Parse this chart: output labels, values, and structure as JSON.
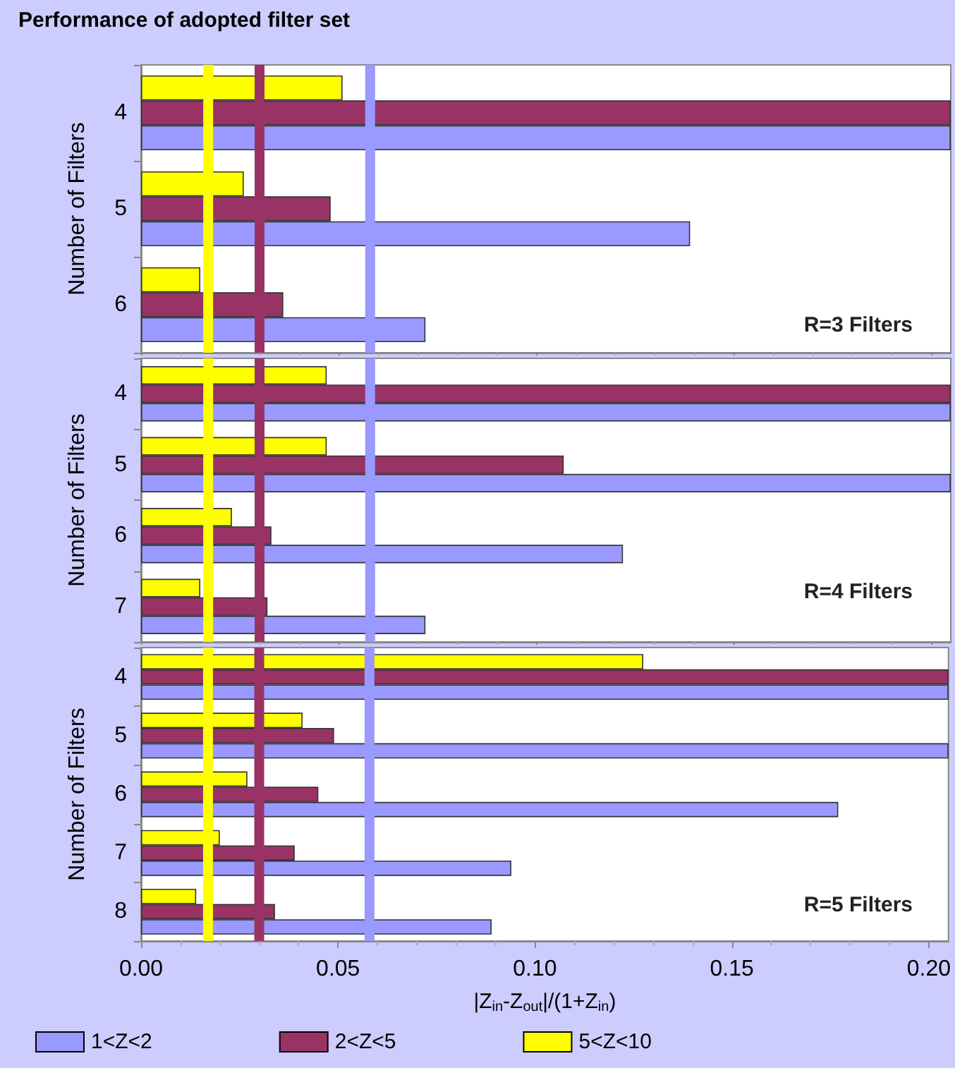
{
  "chart_data": [
    {
      "type": "bar",
      "orientation": "horizontal",
      "title": "Performance of adopted filter set",
      "ylabel": "Number of Filters",
      "annotations": [
        "R=3 Filters"
      ],
      "categories": [
        "4",
        "5",
        "6"
      ],
      "series": [
        {
          "color": "#9999ff",
          "values": [
            0.205,
            0.139,
            0.072
          ]
        },
        {
          "color": "#993366",
          "values": [
            0.205,
            0.048,
            0.036
          ]
        },
        {
          "color": "#ffff00",
          "values": [
            0.051,
            0.026,
            0.015
          ]
        }
      ],
      "xlim": [
        0,
        0.205
      ],
      "xticks": [
        0,
        0.05,
        0.1,
        0.15,
        0.2
      ],
      "tick_labels": "y",
      "grid": false,
      "legend": false,
      "ref_lines": [
        {
          "axis": "x",
          "value": 0.017,
          "color": "#ffff00"
        },
        {
          "axis": "x",
          "value": 0.03,
          "color": "#993366"
        },
        {
          "axis": "x",
          "value": 0.058,
          "color": "#9999ff"
        }
      ]
    },
    {
      "type": "bar",
      "orientation": "horizontal",
      "ylabel": "Number of Filters",
      "annotations": [
        "R=4 Filters"
      ],
      "categories": [
        "4",
        "5",
        "6",
        "7"
      ],
      "series": [
        {
          "color": "#9999ff",
          "values": [
            0.205,
            0.205,
            0.122,
            0.072
          ]
        },
        {
          "color": "#993366",
          "values": [
            0.205,
            0.107,
            0.033,
            0.032
          ]
        },
        {
          "color": "#ffff00",
          "values": [
            0.047,
            0.047,
            0.023,
            0.015
          ]
        }
      ],
      "xlim": [
        0,
        0.205
      ],
      "xticks": [
        0,
        0.05,
        0.1,
        0.15,
        0.2
      ],
      "tick_labels": "y",
      "grid": false,
      "legend": false,
      "ref_lines": [
        {
          "axis": "x",
          "value": 0.017,
          "color": "#ffff00"
        },
        {
          "axis": "x",
          "value": 0.03,
          "color": "#993366"
        },
        {
          "axis": "x",
          "value": 0.058,
          "color": "#9999ff"
        }
      ]
    },
    {
      "type": "bar",
      "orientation": "horizontal",
      "ylabel": "Number of Filters",
      "xlabel": "|Z$_{in}$-Z$_{out}$|/(1+Z$_{in}$)",
      "annotations": [
        "R=5 Filters"
      ],
      "categories": [
        "4",
        "5",
        "6",
        "7",
        "8"
      ],
      "series": [
        {
          "name": "1<Z<2",
          "color": "#9999ff",
          "values": [
            0.205,
            0.205,
            0.177,
            0.094,
            0.089
          ]
        },
        {
          "name": "2<Z<5",
          "color": "#993366",
          "values": [
            0.205,
            0.049,
            0.045,
            0.039,
            0.034
          ]
        },
        {
          "name": "5<Z<10",
          "color": "#ffff00",
          "values": [
            0.1275,
            0.041,
            0.027,
            0.02,
            0.014
          ]
        }
      ],
      "xlim": [
        0,
        0.205
      ],
      "xticks": [
        {
          "value": 0,
          "label": "0.00"
        },
        {
          "value": 0.05,
          "label": "0.05"
        },
        {
          "value": 0.1,
          "label": "0.10"
        },
        {
          "value": 0.15,
          "label": "0.15"
        },
        {
          "value": 0.2,
          "label": "0.20"
        }
      ],
      "grid": false,
      "legend": "bottom",
      "ref_lines": [
        {
          "axis": "x",
          "value": 0.017,
          "color": "#ffff00"
        },
        {
          "axis": "x",
          "value": 0.03,
          "color": "#993366"
        },
        {
          "axis": "x",
          "value": 0.058,
          "color": "#9999ff"
        }
      ]
    }
  ]
}
